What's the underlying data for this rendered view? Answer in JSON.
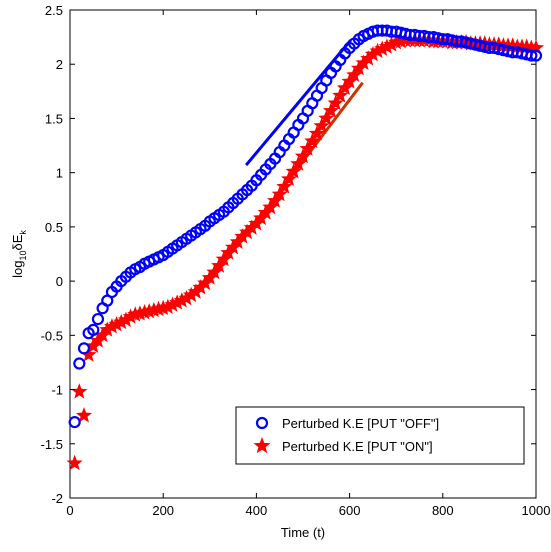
{
  "chart_data": {
    "type": "scatter",
    "xlabel": "Time (t)",
    "ylabel_base": "log",
    "ylabel_sub": "10",
    "ylabel_main": "δE",
    "ylabel_sub2": "k",
    "xlim": [
      0,
      1000
    ],
    "ylim": [
      -2,
      2.5
    ],
    "x_ticks": [
      0,
      200,
      400,
      600,
      800,
      1000
    ],
    "y_ticks": [
      -2,
      -1.5,
      -1,
      -0.5,
      0,
      0.5,
      1,
      1.5,
      2,
      2.5
    ],
    "x_tick_labels": [
      "0",
      "200",
      "400",
      "600",
      "800",
      "1000"
    ],
    "y_tick_labels": [
      "-2",
      "-1.5",
      "-1",
      "-0.5",
      "0",
      "0.5",
      "1",
      "1.5",
      "2",
      "2.5"
    ],
    "grid": false,
    "legend_position": "lower-right",
    "series": [
      {
        "name": "Perturbed K.E [PUT \"OFF\"]",
        "marker": "circle-open",
        "color": "#0000ff",
        "x": [
          10,
          20,
          30,
          40,
          50,
          60,
          70,
          80,
          90,
          100,
          110,
          120,
          130,
          140,
          150,
          160,
          170,
          180,
          190,
          200,
          210,
          220,
          230,
          240,
          250,
          260,
          270,
          280,
          290,
          300,
          310,
          320,
          330,
          340,
          350,
          360,
          370,
          380,
          390,
          400,
          410,
          420,
          430,
          440,
          450,
          460,
          470,
          480,
          490,
          500,
          510,
          520,
          530,
          540,
          550,
          560,
          570,
          580,
          590,
          600,
          610,
          620,
          630,
          640,
          650,
          660,
          670,
          680,
          690,
          700,
          710,
          720,
          730,
          740,
          750,
          760,
          770,
          780,
          790,
          800,
          810,
          820,
          830,
          840,
          850,
          860,
          870,
          880,
          890,
          900,
          910,
          920,
          930,
          940,
          950,
          960,
          970,
          980,
          990,
          1000
        ],
        "y": [
          -1.3,
          -0.76,
          -0.62,
          -0.48,
          -0.45,
          -0.35,
          -0.25,
          -0.18,
          -0.1,
          -0.05,
          0.0,
          0.04,
          0.08,
          0.11,
          0.13,
          0.16,
          0.18,
          0.2,
          0.22,
          0.24,
          0.27,
          0.3,
          0.33,
          0.36,
          0.39,
          0.42,
          0.45,
          0.48,
          0.51,
          0.55,
          0.58,
          0.61,
          0.64,
          0.68,
          0.72,
          0.76,
          0.8,
          0.84,
          0.88,
          0.93,
          0.98,
          1.03,
          1.08,
          1.13,
          1.19,
          1.25,
          1.31,
          1.37,
          1.44,
          1.5,
          1.57,
          1.64,
          1.71,
          1.78,
          1.85,
          1.92,
          1.98,
          2.04,
          2.1,
          2.15,
          2.19,
          2.23,
          2.26,
          2.28,
          2.3,
          2.31,
          2.31,
          2.31,
          2.3,
          2.3,
          2.29,
          2.28,
          2.27,
          2.27,
          2.26,
          2.26,
          2.25,
          2.25,
          2.24,
          2.23,
          2.23,
          2.22,
          2.21,
          2.21,
          2.2,
          2.19,
          2.18,
          2.17,
          2.16,
          2.15,
          2.15,
          2.14,
          2.13,
          2.12,
          2.11,
          2.11,
          2.1,
          2.09,
          2.08,
          2.08
        ]
      },
      {
        "name": "Perturbed K.E [PUT \"ON\"]",
        "marker": "star",
        "color": "#ff0000",
        "x": [
          10,
          20,
          30,
          40,
          50,
          60,
          70,
          80,
          90,
          100,
          110,
          120,
          130,
          140,
          150,
          160,
          170,
          180,
          190,
          200,
          210,
          220,
          230,
          240,
          250,
          260,
          270,
          280,
          290,
          300,
          310,
          320,
          330,
          340,
          350,
          360,
          370,
          380,
          390,
          400,
          410,
          420,
          430,
          440,
          450,
          460,
          470,
          480,
          490,
          500,
          510,
          520,
          530,
          540,
          550,
          560,
          570,
          580,
          590,
          600,
          610,
          620,
          630,
          640,
          650,
          660,
          670,
          680,
          690,
          700,
          710,
          720,
          730,
          740,
          750,
          760,
          770,
          780,
          790,
          800,
          810,
          820,
          830,
          840,
          850,
          860,
          870,
          880,
          890,
          900,
          910,
          920,
          930,
          940,
          950,
          960,
          970,
          980,
          990,
          1000
        ],
        "y": [
          -1.68,
          -1.02,
          -1.24,
          -0.68,
          -0.6,
          -0.55,
          -0.5,
          -0.45,
          -0.42,
          -0.4,
          -0.38,
          -0.36,
          -0.33,
          -0.31,
          -0.3,
          -0.29,
          -0.28,
          -0.27,
          -0.26,
          -0.25,
          -0.24,
          -0.22,
          -0.2,
          -0.18,
          -0.16,
          -0.13,
          -0.1,
          -0.06,
          -0.02,
          0.03,
          0.08,
          0.14,
          0.2,
          0.26,
          0.31,
          0.36,
          0.41,
          0.45,
          0.49,
          0.53,
          0.58,
          0.63,
          0.68,
          0.74,
          0.8,
          0.87,
          0.94,
          1.01,
          1.08,
          1.15,
          1.22,
          1.29,
          1.36,
          1.43,
          1.5,
          1.57,
          1.64,
          1.71,
          1.78,
          1.84,
          1.9,
          1.96,
          2.01,
          2.05,
          2.09,
          2.12,
          2.14,
          2.16,
          2.18,
          2.2,
          2.21,
          2.22,
          2.22,
          2.22,
          2.22,
          2.22,
          2.22,
          2.21,
          2.21,
          2.21,
          2.21,
          2.2,
          2.2,
          2.2,
          2.2,
          2.19,
          2.19,
          2.19,
          2.19,
          2.18,
          2.18,
          2.18,
          2.17,
          2.17,
          2.17,
          2.16,
          2.16,
          2.16,
          2.15,
          2.15
        ]
      }
    ],
    "reference_lines": [
      {
        "color": "#0000ff",
        "x": [
          378,
          602
        ],
        "y": [
          1.07,
          2.22
        ]
      },
      {
        "color": "#cc3300",
        "x": [
          428,
          628
        ],
        "y": [
          0.7,
          1.83
        ]
      }
    ]
  }
}
